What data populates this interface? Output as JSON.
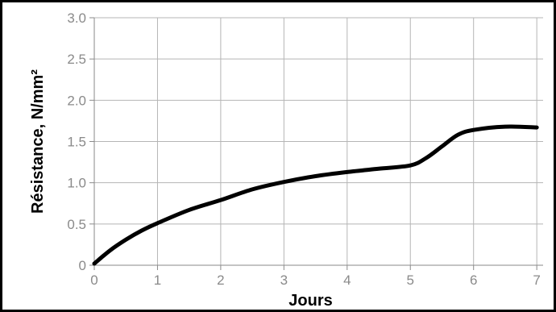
{
  "chart_data": {
    "type": "line",
    "title": "",
    "xlabel": "Jours",
    "ylabel": "Résistance, N/mm²",
    "xlim": [
      0,
      7.1
    ],
    "ylim": [
      0,
      3.0
    ],
    "x_ticks": [
      0,
      1,
      2,
      3,
      4,
      5,
      6,
      7
    ],
    "x_tick_labels": [
      "0",
      "1",
      "2",
      "3",
      "4",
      "5",
      "6",
      "7"
    ],
    "y_ticks": [
      0,
      0.5,
      1.0,
      1.5,
      2.0,
      2.5,
      3.0
    ],
    "y_tick_labels": [
      "0",
      "0.5",
      "1.0",
      "1.5",
      "2.0",
      "2.5",
      "3.0"
    ],
    "grid": true,
    "line_color": "#000000",
    "series": [
      {
        "x": [
          0,
          0.25,
          0.5,
          0.75,
          1,
          1.5,
          2,
          2.5,
          3,
          3.5,
          4,
          4.5,
          5,
          5.25,
          5.5,
          5.75,
          6,
          6.5,
          7
        ],
        "y": [
          0.02,
          0.18,
          0.31,
          0.42,
          0.51,
          0.67,
          0.79,
          0.92,
          1.01,
          1.08,
          1.13,
          1.17,
          1.21,
          1.3,
          1.44,
          1.58,
          1.64,
          1.68,
          1.67
        ]
      }
    ]
  }
}
